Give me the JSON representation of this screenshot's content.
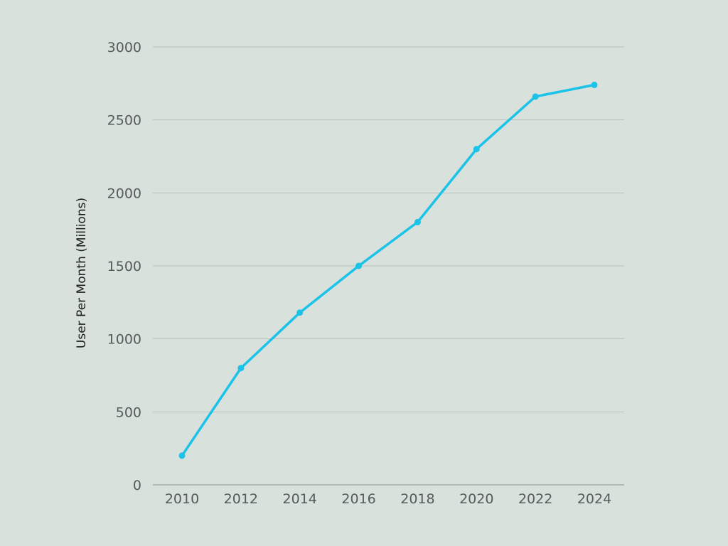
{
  "chart_data": {
    "type": "line",
    "title": "",
    "xlabel": "",
    "ylabel": "User Per Month (Millions)",
    "x": [
      2010,
      2012,
      2014,
      2016,
      2018,
      2020,
      2022,
      2024
    ],
    "x_tick_labels": [
      "2010",
      "2012",
      "2014",
      "2016",
      "2018",
      "2020",
      "2022",
      "2024"
    ],
    "y_ticks": [
      0,
      500,
      1000,
      1500,
      2000,
      2500,
      3000
    ],
    "y_tick_labels": [
      "0",
      "500",
      "1000",
      "1500",
      "2000",
      "2500",
      "3000"
    ],
    "ylim": [
      0,
      3000
    ],
    "grid": true,
    "legend": "none",
    "series": [
      {
        "values": [
          200,
          800,
          1180,
          1500,
          1800,
          2300,
          2660,
          2740
        ],
        "color": "#1bc3e8"
      }
    ],
    "colors": {
      "background": "#d8e1dc",
      "gridline": "#b9c2be",
      "axis": "#8d9592"
    }
  }
}
